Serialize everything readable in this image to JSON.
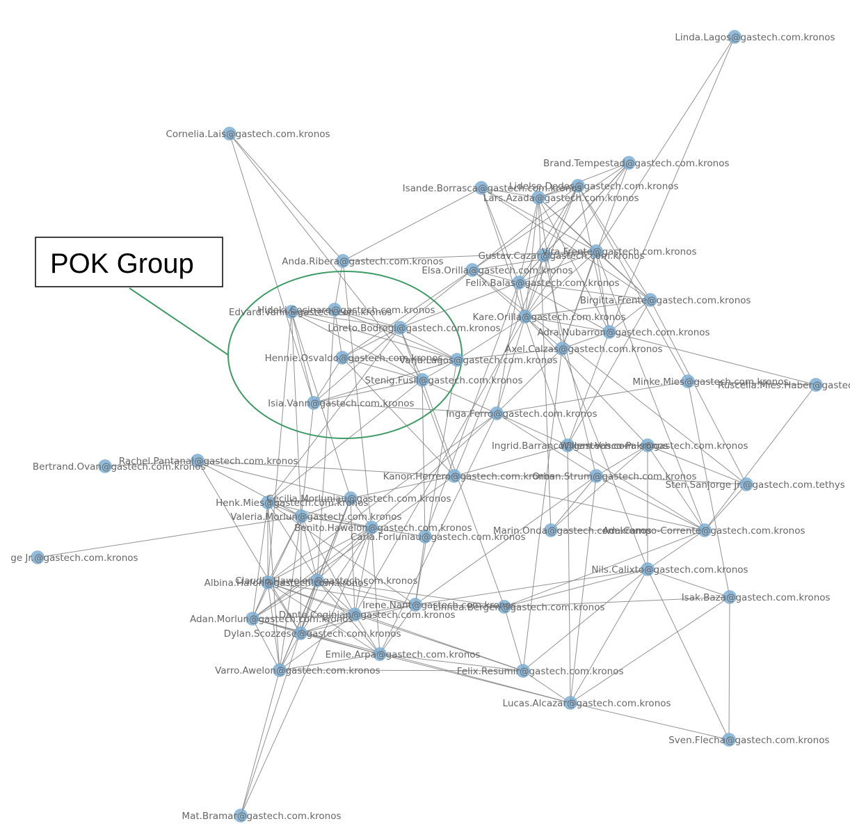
{
  "annotation": {
    "label": "POK Group"
  },
  "colors": {
    "node": "#7fb0d6",
    "edge": "#7f7f7f",
    "label": "#666666",
    "annotation": "#3c9a64"
  },
  "nodes": [
    {
      "id": "linda_lagos",
      "label": "Linda.Lagos@gastech.com.kronos"
    },
    {
      "id": "cornelia_lais",
      "label": "Cornelia.Lais@gastech.com.kronos"
    },
    {
      "id": "brand_tempestad",
      "label": "Brand.Tempestad@gastech.com.kronos"
    },
    {
      "id": "isande_borrasca",
      "label": "Isande.Borrasca@gastech.com.kronos"
    },
    {
      "id": "lidelse_dedos",
      "label": "Lidelse.Dedos@gastech.com.kronos"
    },
    {
      "id": "lars_azada",
      "label": "Lars.Azada@gastech.com.kronos"
    },
    {
      "id": "anda_ribera",
      "label": "Anda.Ribera@gastech.com.kronos"
    },
    {
      "id": "gustav_cazar",
      "label": "Gustav.Cazar@gastech.com.kronos"
    },
    {
      "id": "vira_frente",
      "label": "Vira.Frente@gastech.com.kronos"
    },
    {
      "id": "elsa_orilla",
      "label": "Elsa.Orilla@gastech.com.kronos"
    },
    {
      "id": "felix_balas",
      "label": "Felix.Balas@gastech.com.kronos"
    },
    {
      "id": "birgitta_frente",
      "label": "Birgitta.Frente@gastech.com.kronos"
    },
    {
      "id": "edvard_vann",
      "label": "Edvard.Vann@gastech.com.kronos"
    },
    {
      "id": "hideki_cocinaro",
      "label": "Hideki.Cocinaro@gastech.com.kronos"
    },
    {
      "id": "kare_orilla",
      "label": "Kare.Orilla@gastech.com.kronos"
    },
    {
      "id": "loreto_bodrogi",
      "label": "Loreto.Bodrogi@gastech.com.kronos"
    },
    {
      "id": "adra_nubarron",
      "label": "Adra.Nubarron@gastech.com.kronos"
    },
    {
      "id": "axel_calzas",
      "label": "Axel.Calzas@gastech.com.kronos"
    },
    {
      "id": "hennie_osvaldo",
      "label": "Hennie.Osvaldo@gastech.com.kronos"
    },
    {
      "id": "varja_lagos",
      "label": "Varja.Lagos@gastech.com.kronos"
    },
    {
      "id": "stenig_fusil",
      "label": "Stenig.Fusil@gastech.com.kronos"
    },
    {
      "id": "minke_mies",
      "label": "Minke.Mies@gastech.com.kronos"
    },
    {
      "id": "ruscella_mies_haber",
      "label": "Ruscella.Mies.Haber@gastech.com.kronos"
    },
    {
      "id": "isia_vann",
      "label": "Isia.Vann@gastech.com.kronos"
    },
    {
      "id": "inga_ferro",
      "label": "Inga.Ferro@gastech.com.kronos"
    },
    {
      "id": "ingrid_barranco",
      "label": "Ingrid.Barranco@gastech.com.kronos"
    },
    {
      "id": "willem_vasco_pais",
      "label": "Willem.Vasco-Pais@gastech.com.kronos"
    },
    {
      "id": "bertrand_ovan",
      "label": "Bertrand.Ovan@gastech.com.kronos"
    },
    {
      "id": "rachel_pantanal",
      "label": "Rachel.Pantanal@gastech.com.kronos"
    },
    {
      "id": "kanon_herrero",
      "label": "Kanon.Herrero@gastech.com.kronos"
    },
    {
      "id": "orhan_strum",
      "label": "Orhan.Strum@gastech.com.kronos"
    },
    {
      "id": "sten_sanjorge_tethys",
      "label": "Sten.Sanjorge Jr.@gastech.com.tethys"
    },
    {
      "id": "henk_mies",
      "label": "Henk.Mies@gastech.com.kronos"
    },
    {
      "id": "cecilia_morluniau",
      "label": "Cecilia.Morluniau@gastech.com.kronos"
    },
    {
      "id": "valeria_morlun",
      "label": "Valeria.Morlun@gastech.com.kronos"
    },
    {
      "id": "benito_hawelon",
      "label": "Benito.Hawelon@gastech.com.kronos"
    },
    {
      "id": "carla_forluniau",
      "label": "Carla.Forluniau@gastech.com.kronos"
    },
    {
      "id": "marin_onda",
      "label": "Marin.Onda@gastech.com.kronos"
    },
    {
      "id": "ada_campo_corrente",
      "label": "Ada.Campo-Corrente@gastech.com.kronos"
    },
    {
      "id": "sten_sanjorge_kronos",
      "label": "ge Jr.@gastech.com.kronos"
    },
    {
      "id": "nils_calixto",
      "label": "Nils.Calixto@gastech.com.kronos"
    },
    {
      "id": "albina_hafon",
      "label": "Albina.Hafon@gastech.com.kronos"
    },
    {
      "id": "claudio_hawelon",
      "label": "Claudio.Hawelon@gastech.com.kronos"
    },
    {
      "id": "irene_nant",
      "label": "Irene.Nant@gastech.com.kronos"
    },
    {
      "id": "linnea_bergen",
      "label": "Linnea.Bergen@gastech.com.kronos"
    },
    {
      "id": "isak_baza",
      "label": "Isak.Baza@gastech.com.kronos"
    },
    {
      "id": "adan_morlun",
      "label": "Adan.Morlun@gastech.com.kronos"
    },
    {
      "id": "dante_coginian",
      "label": "Dante.Coginian@gastech.com.kronos"
    },
    {
      "id": "dylan_scozzese",
      "label": "Dylan.Scozzese@gastech.com.kronos"
    },
    {
      "id": "emile_arpa",
      "label": "Emile.Arpa@gastech.com.kronos"
    },
    {
      "id": "varro_awelon",
      "label": "Varro.Awelon@gastech.com.kronos"
    },
    {
      "id": "felix_resumir",
      "label": "Felix.Resumir@gastech.com.kronos"
    },
    {
      "id": "lucas_alcazar",
      "label": "Lucas.Alcazar@gastech.com.kronos"
    },
    {
      "id": "sven_flecha",
      "label": "Sven.Flecha@gastech.com.kronos"
    },
    {
      "id": "mat_bramar",
      "label": "Mat.Bramar@gastech.com.kronos"
    }
  ],
  "edges": [
    [
      "linda_lagos",
      "vira_frente"
    ],
    [
      "linda_lagos",
      "adra_nubarron"
    ],
    [
      "cornelia_lais",
      "stenig_fusil"
    ],
    [
      "cornelia_lais",
      "isia_vann"
    ],
    [
      "brand_tempestad",
      "lars_azada"
    ],
    [
      "brand_tempestad",
      "felix_balas"
    ],
    [
      "brand_tempestad",
      "kare_orilla"
    ],
    [
      "brand_tempestad",
      "elsa_orilla"
    ],
    [
      "brand_tempestad",
      "axel_calzas"
    ],
    [
      "brand_tempestad",
      "gustav_cazar"
    ],
    [
      "isande_borrasca",
      "lars_azada"
    ],
    [
      "isande_borrasca",
      "vira_frente"
    ],
    [
      "isande_borrasca",
      "felix_balas"
    ],
    [
      "isande_borrasca",
      "birgitta_frente"
    ],
    [
      "isande_borrasca",
      "anda_ribera"
    ],
    [
      "isande_borrasca",
      "ingrid_barranco"
    ],
    [
      "lidelse_dedos",
      "lars_azada"
    ],
    [
      "lidelse_dedos",
      "gustav_cazar"
    ],
    [
      "lidelse_dedos",
      "felix_balas"
    ],
    [
      "lidelse_dedos",
      "birgitta_frente"
    ],
    [
      "lidelse_dedos",
      "kare_orilla"
    ],
    [
      "lidelse_dedos",
      "minke_mies"
    ],
    [
      "lidelse_dedos",
      "adra_nubarron"
    ],
    [
      "lidelse_dedos",
      "loreto_bodrogi"
    ],
    [
      "lars_azada",
      "vira_frente"
    ],
    [
      "lars_azada",
      "felix_balas"
    ],
    [
      "lars_azada",
      "birgitta_frente"
    ],
    [
      "lars_azada",
      "adra_nubarron"
    ],
    [
      "lars_azada",
      "kare_orilla"
    ],
    [
      "lars_azada",
      "marin_onda"
    ],
    [
      "lars_azada",
      "axel_calzas"
    ],
    [
      "anda_ribera",
      "vira_frente"
    ],
    [
      "anda_ribera",
      "benito_hawelon"
    ],
    [
      "anda_ribera",
      "cornelia_lais"
    ],
    [
      "gustav_cazar",
      "vira_frente"
    ],
    [
      "gustav_cazar",
      "felix_balas"
    ],
    [
      "gustav_cazar",
      "kare_orilla"
    ],
    [
      "gustav_cazar",
      "orhan_strum"
    ],
    [
      "gustav_cazar",
      "kanon_herrero"
    ],
    [
      "vira_frente",
      "felix_balas"
    ],
    [
      "vira_frente",
      "birgitta_frente"
    ],
    [
      "vira_frente",
      "adra_nubarron"
    ],
    [
      "vira_frente",
      "kare_orilla"
    ],
    [
      "vira_frente",
      "axel_calzas"
    ],
    [
      "vira_frente",
      "ada_campo_corrente"
    ],
    [
      "elsa_orilla",
      "felix_balas"
    ],
    [
      "elsa_orilla",
      "kare_orilla"
    ],
    [
      "elsa_orilla",
      "vira_frente"
    ],
    [
      "elsa_orilla",
      "hennie_osvaldo"
    ],
    [
      "elsa_orilla",
      "sten_sanjorge_tethys"
    ],
    [
      "felix_balas",
      "kare_orilla"
    ],
    [
      "felix_balas",
      "adra_nubarron"
    ],
    [
      "felix_balas",
      "birgitta_frente"
    ],
    [
      "felix_balas",
      "loreto_bodrogi"
    ],
    [
      "felix_balas",
      "inga_ferro"
    ],
    [
      "felix_balas",
      "carla_forluniau"
    ],
    [
      "birgitta_frente",
      "adra_nubarron"
    ],
    [
      "birgitta_frente",
      "kare_orilla"
    ],
    [
      "birgitta_frente",
      "ingrid_barranco"
    ],
    [
      "birgitta_frente",
      "sten_sanjorge_tethys"
    ],
    [
      "edvard_vann",
      "hideki_cocinaro"
    ],
    [
      "edvard_vann",
      "loreto_bodrogi"
    ],
    [
      "edvard_vann",
      "varja_lagos"
    ],
    [
      "edvard_vann",
      "isia_vann"
    ],
    [
      "edvard_vann",
      "stenig_fusil"
    ],
    [
      "edvard_vann",
      "cecilia_morluniau"
    ],
    [
      "edvard_vann",
      "valeria_morlun"
    ],
    [
      "edvard_vann",
      "albina_hafon"
    ],
    [
      "hideki_cocinaro",
      "loreto_bodrogi"
    ],
    [
      "hideki_cocinaro",
      "hennie_osvaldo"
    ],
    [
      "hideki_cocinaro",
      "varja_lagos"
    ],
    [
      "hideki_cocinaro",
      "anda_ribera"
    ],
    [
      "hideki_cocinaro",
      "claudio_hawelon"
    ],
    [
      "loreto_bodrogi",
      "hennie_osvaldo"
    ],
    [
      "loreto_bodrogi",
      "varja_lagos"
    ],
    [
      "loreto_bodrogi",
      "stenig_fusil"
    ],
    [
      "loreto_bodrogi",
      "isia_vann"
    ],
    [
      "loreto_bodrogi",
      "kanon_herrero"
    ],
    [
      "loreto_bodrogi",
      "henk_mies"
    ],
    [
      "hennie_osvaldo",
      "varja_lagos"
    ],
    [
      "hennie_osvaldo",
      "stenig_fusil"
    ],
    [
      "hennie_osvaldo",
      "isia_vann"
    ],
    [
      "hennie_osvaldo",
      "kanon_herrero"
    ],
    [
      "varja_lagos",
      "stenig_fusil"
    ],
    [
      "varja_lagos",
      "isia_vann"
    ],
    [
      "varja_lagos",
      "kare_orilla"
    ],
    [
      "varja_lagos",
      "axel_calzas"
    ],
    [
      "varja_lagos",
      "irene_nant"
    ],
    [
      "stenig_fusil",
      "isia_vann"
    ],
    [
      "stenig_fusil",
      "inga_ferro"
    ],
    [
      "stenig_fusil",
      "henk_mies"
    ],
    [
      "stenig_fusil",
      "linnea_bergen"
    ],
    [
      "isia_vann",
      "inga_ferro"
    ],
    [
      "isia_vann",
      "valeria_morlun"
    ],
    [
      "kare_orilla",
      "adra_nubarron"
    ],
    [
      "kare_orilla",
      "axel_calzas"
    ],
    [
      "kare_orilla",
      "inga_ferro"
    ],
    [
      "kare_orilla",
      "willem_vasco_pais"
    ],
    [
      "kare_orilla",
      "dante_coginian"
    ],
    [
      "adra_nubarron",
      "axel_calzas"
    ],
    [
      "adra_nubarron",
      "ruscella_mies_haber"
    ],
    [
      "adra_nubarron",
      "ingrid_barranco"
    ],
    [
      "axel_calzas",
      "inga_ferro"
    ],
    [
      "axel_calzas",
      "nils_calixto"
    ],
    [
      "axel_calzas",
      "felix_resumir"
    ],
    [
      "minke_mies",
      "inga_ferro"
    ],
    [
      "minke_mies",
      "ruscella_mies_haber"
    ],
    [
      "minke_mies",
      "isak_baza"
    ],
    [
      "ruscella_mies_haber",
      "ada_campo_corrente"
    ],
    [
      "inga_ferro",
      "ingrid_barranco"
    ],
    [
      "inga_ferro",
      "benito_hawelon"
    ],
    [
      "inga_ferro",
      "albina_hafon"
    ],
    [
      "inga_ferro",
      "orhan_strum"
    ],
    [
      "inga_ferro",
      "emile_arpa"
    ],
    [
      "ingrid_barranco",
      "willem_vasco_pais"
    ],
    [
      "ingrid_barranco",
      "lucas_alcazar"
    ],
    [
      "ingrid_barranco",
      "kanon_herrero"
    ],
    [
      "ingrid_barranco",
      "ada_campo_corrente"
    ],
    [
      "willem_vasco_pais",
      "orhan_strum"
    ],
    [
      "willem_vasco_pais",
      "ada_campo_corrente"
    ],
    [
      "willem_vasco_pais",
      "sten_sanjorge_tethys"
    ],
    [
      "willem_vasco_pais",
      "marin_onda"
    ],
    [
      "willem_vasco_pais",
      "nils_calixto"
    ],
    [
      "bertrand_ovan",
      "rachel_pantanal"
    ],
    [
      "rachel_pantanal",
      "cecilia_morluniau"
    ],
    [
      "rachel_pantanal",
      "kanon_herrero"
    ],
    [
      "rachel_pantanal",
      "valeria_morlun"
    ],
    [
      "rachel_pantanal",
      "dylan_scozzese"
    ],
    [
      "kanon_herrero",
      "orhan_strum"
    ],
    [
      "kanon_herrero",
      "cecilia_morluniau"
    ],
    [
      "kanon_herrero",
      "adan_morlun"
    ],
    [
      "kanon_herrero",
      "ada_campo_corrente"
    ],
    [
      "orhan_strum",
      "ada_campo_corrente"
    ],
    [
      "orhan_strum",
      "irene_nant"
    ],
    [
      "orhan_strum",
      "sten_sanjorge_tethys"
    ],
    [
      "sten_sanjorge_tethys",
      "ada_campo_corrente"
    ],
    [
      "henk_mies",
      "cecilia_morluniau"
    ],
    [
      "henk_mies",
      "valeria_morlun"
    ],
    [
      "henk_mies",
      "benito_hawelon"
    ],
    [
      "henk_mies",
      "albina_hafon"
    ],
    [
      "henk_mies",
      "claudio_hawelon"
    ],
    [
      "henk_mies",
      "adan_morlun"
    ],
    [
      "henk_mies",
      "varro_awelon"
    ],
    [
      "henk_mies",
      "irene_nant"
    ],
    [
      "cecilia_morluniau",
      "valeria_morlun"
    ],
    [
      "cecilia_morluniau",
      "benito_hawelon"
    ],
    [
      "cecilia_morluniau",
      "claudio_hawelon"
    ],
    [
      "cecilia_morluniau",
      "dante_coginian"
    ],
    [
      "cecilia_morluniau",
      "varro_awelon"
    ],
    [
      "cecilia_morluniau",
      "dylan_scozzese"
    ],
    [
      "valeria_morlun",
      "benito_hawelon"
    ],
    [
      "valeria_morlun",
      "carla_forluniau"
    ],
    [
      "valeria_morlun",
      "albina_hafon"
    ],
    [
      "valeria_morlun",
      "claudio_hawelon"
    ],
    [
      "valeria_morlun",
      "adan_morlun"
    ],
    [
      "valeria_morlun",
      "dante_coginian"
    ],
    [
      "valeria_morlun",
      "dylan_scozzese"
    ],
    [
      "valeria_morlun",
      "varro_awelon"
    ],
    [
      "valeria_morlun",
      "sten_sanjorge_kronos"
    ],
    [
      "benito_hawelon",
      "claudio_hawelon"
    ],
    [
      "benito_hawelon",
      "albina_hafon"
    ],
    [
      "benito_hawelon",
      "dante_coginian"
    ],
    [
      "benito_hawelon",
      "adan_morlun"
    ],
    [
      "benito_hawelon",
      "dylan_scozzese"
    ],
    [
      "benito_hawelon",
      "emile_arpa"
    ],
    [
      "benito_hawelon",
      "mat_bramar"
    ],
    [
      "carla_forluniau",
      "stenig_fusil"
    ],
    [
      "carla_forluniau",
      "irene_nant"
    ],
    [
      "marin_onda",
      "ada_campo_corrente"
    ],
    [
      "marin_onda",
      "orhan_strum"
    ],
    [
      "ada_campo_corrente",
      "nils_calixto"
    ],
    [
      "ada_campo_corrente",
      "linnea_bergen"
    ],
    [
      "nils_calixto",
      "isak_baza"
    ],
    [
      "nils_calixto",
      "lucas_alcazar"
    ],
    [
      "nils_calixto",
      "felix_resumir"
    ],
    [
      "nils_calixto",
      "linnea_bergen"
    ],
    [
      "nils_calixto",
      "sven_flecha"
    ],
    [
      "albina_hafon",
      "claudio_hawelon"
    ],
    [
      "albina_hafon",
      "dante_coginian"
    ],
    [
      "albina_hafon",
      "irene_nant"
    ],
    [
      "albina_hafon",
      "adan_morlun"
    ],
    [
      "albina_hafon",
      "dylan_scozzese"
    ],
    [
      "albina_hafon",
      "varro_awelon"
    ],
    [
      "albina_hafon",
      "emile_arpa"
    ],
    [
      "albina_hafon",
      "felix_resumir"
    ],
    [
      "claudio_hawelon",
      "dante_coginian"
    ],
    [
      "claudio_hawelon",
      "irene_nant"
    ],
    [
      "claudio_hawelon",
      "adan_morlun"
    ],
    [
      "claudio_hawelon",
      "dylan_scozzese"
    ],
    [
      "claudio_hawelon",
      "varro_awelon"
    ],
    [
      "claudio_hawelon",
      "emile_arpa"
    ],
    [
      "claudio_hawelon",
      "linnea_bergen"
    ],
    [
      "irene_nant",
      "dante_coginian"
    ],
    [
      "irene_nant",
      "linnea_bergen"
    ],
    [
      "irene_nant",
      "dylan_scozzese"
    ],
    [
      "irene_nant",
      "emile_arpa"
    ],
    [
      "irene_nant",
      "nils_calixto"
    ],
    [
      "isak_baza",
      "sven_flecha"
    ],
    [
      "isak_baza",
      "lucas_alcazar"
    ],
    [
      "isak_baza",
      "linnea_bergen"
    ],
    [
      "adan_morlun",
      "dante_coginian"
    ],
    [
      "adan_morlun",
      "dylan_scozzese"
    ],
    [
      "adan_morlun",
      "varro_awelon"
    ],
    [
      "adan_morlun",
      "emile_arpa"
    ],
    [
      "adan_morlun",
      "lucas_alcazar"
    ],
    [
      "dante_coginian",
      "dylan_scozzese"
    ],
    [
      "dante_coginian",
      "emile_arpa"
    ],
    [
      "dante_coginian",
      "felix_resumir"
    ],
    [
      "dante_coginian",
      "varro_awelon"
    ],
    [
      "dylan_scozzese",
      "varro_awelon"
    ],
    [
      "dylan_scozzese",
      "emile_arpa"
    ],
    [
      "emile_arpa",
      "felix_resumir"
    ],
    [
      "emile_arpa",
      "lucas_alcazar"
    ],
    [
      "emile_arpa",
      "varro_awelon"
    ],
    [
      "varro_awelon",
      "mat_bramar"
    ],
    [
      "varro_awelon",
      "felix_resumir"
    ],
    [
      "felix_resumir",
      "lucas_alcazar"
    ],
    [
      "felix_resumir",
      "linnea_bergen"
    ],
    [
      "lucas_alcazar",
      "sven_flecha"
    ],
    [
      "lucas_alcazar",
      "orhan_strum"
    ],
    [
      "mat_bramar",
      "claudio_hawelon"
    ]
  ]
}
